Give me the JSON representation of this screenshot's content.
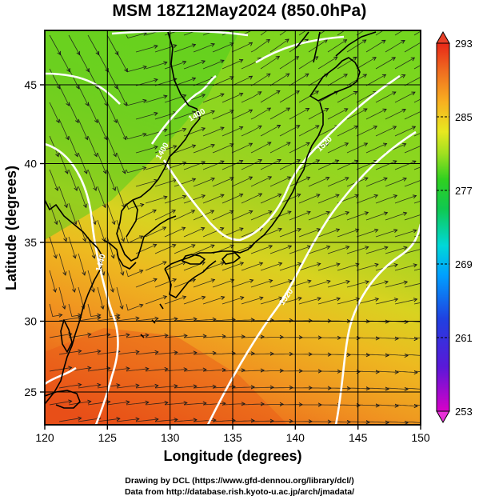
{
  "title": "MSM 18Z12May2024 (850.0hPa)",
  "xaxis": {
    "label": "Longitude (degrees)",
    "ticks": [
      "120",
      "125",
      "130",
      "135",
      "140",
      "145",
      "150"
    ],
    "range": [
      120,
      150
    ]
  },
  "yaxis": {
    "label": "Latitude  (degrees)",
    "ticks": [
      "25",
      "30",
      "35",
      "40",
      "45"
    ],
    "range": [
      22.4,
      47.6
    ]
  },
  "colorbar": {
    "labels": [
      "293",
      "285",
      "277",
      "269",
      "261",
      "253"
    ],
    "range": [
      253,
      293
    ],
    "colors": [
      "#d800c8",
      "#5a18d8",
      "#2040e0",
      "#00a0ff",
      "#00d8d8",
      "#10c850",
      "#30d020",
      "#a0e020",
      "#e8e820",
      "#f8b020",
      "#f07020",
      "#e82818"
    ]
  },
  "contour_labels": [
    "1400",
    "1400",
    "1440",
    "1520",
    "1520"
  ],
  "credits": {
    "line1": "Drawing by DCL (https://www.gfd-dennou.org/library/dcl/)",
    "line2": "Data from http://database.rish.kyoto-u.ac.jp/arch/jmadata/"
  }
}
